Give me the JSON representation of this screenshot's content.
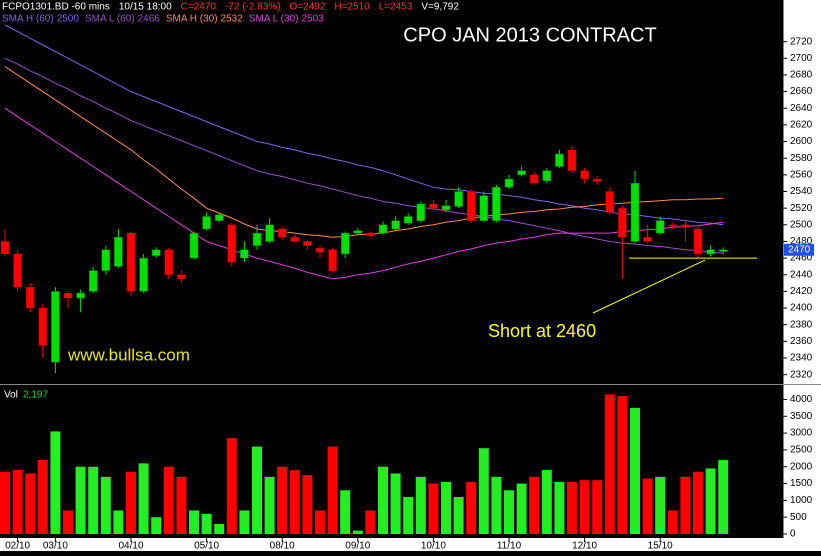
{
  "chart_data": [
    {
      "type": "candlestick",
      "title": "CPO JAN 2013 CONTRACT",
      "header": [
        "FCPO1301.BD -60 mins",
        "10/15 18:00",
        "C=2470",
        "-72 (-2.83%)",
        "O=2492",
        "H=2510",
        "L=2453",
        "V=9,792"
      ],
      "watermark": "www.bullsa.com",
      "annotation": "Short at 2460",
      "short_level": 2460,
      "price_tag": 2470,
      "up_color": "#00e000",
      "down_color": "#ff0000",
      "categories": [
        null,
        "02/10",
        null,
        null,
        "03/10",
        null,
        null,
        null,
        null,
        null,
        "04/10",
        null,
        null,
        null,
        null,
        null,
        "05/10",
        null,
        null,
        null,
        null,
        null,
        "08/10",
        null,
        null,
        null,
        null,
        null,
        "09/10",
        null,
        null,
        null,
        null,
        null,
        "10/10",
        null,
        null,
        null,
        null,
        null,
        "11/10",
        null,
        null,
        null,
        null,
        null,
        "12/10",
        null,
        null,
        null,
        null,
        null,
        "15/10",
        null,
        null,
        null,
        null,
        null
      ],
      "open": [
        2480,
        2465,
        2425,
        2400,
        2335,
        2418,
        2412,
        2420,
        2445,
        2450,
        2490,
        2420,
        2463,
        2470,
        2440,
        2460,
        2495,
        2505,
        2500,
        2460,
        2475,
        2480,
        2495,
        2485,
        2480,
        2472,
        2470,
        2465,
        2490,
        2490,
        2490,
        2495,
        2502,
        2505,
        2525,
        2518,
        2522,
        2540,
        2505,
        2505,
        2545,
        2560,
        2560,
        2553,
        2570,
        2590,
        2565,
        2555,
        2540,
        2520,
        2480,
        2485,
        2490,
        2500,
        2500,
        2495,
        2465,
        2468
      ],
      "high": [
        2495,
        2470,
        2430,
        2405,
        2425,
        2420,
        2422,
        2450,
        2475,
        2495,
        2492,
        2465,
        2473,
        2472,
        2445,
        2492,
        2515,
        2514,
        2502,
        2480,
        2500,
        2508,
        2498,
        2488,
        2482,
        2475,
        2472,
        2492,
        2496,
        2492,
        2504,
        2510,
        2514,
        2528,
        2530,
        2530,
        2545,
        2542,
        2540,
        2548,
        2560,
        2570,
        2563,
        2568,
        2590,
        2595,
        2568,
        2558,
        2545,
        2523,
        2565,
        2500,
        2510,
        2503,
        2505,
        2500,
        2475,
        2473
      ],
      "low": [
        2462,
        2420,
        2395,
        2340,
        2322,
        2400,
        2395,
        2418,
        2440,
        2448,
        2415,
        2418,
        2460,
        2435,
        2430,
        2458,
        2493,
        2503,
        2450,
        2455,
        2470,
        2478,
        2482,
        2478,
        2470,
        2460,
        2443,
        2460,
        2488,
        2485,
        2488,
        2493,
        2500,
        2503,
        2518,
        2515,
        2520,
        2502,
        2503,
        2503,
        2543,
        2558,
        2548,
        2550,
        2568,
        2562,
        2550,
        2548,
        2512,
        2435,
        2478,
        2478,
        2488,
        2495,
        2480,
        2460,
        2462,
        2465
      ],
      "close": [
        2465,
        2425,
        2400,
        2355,
        2420,
        2412,
        2418,
        2445,
        2470,
        2485,
        2420,
        2460,
        2470,
        2440,
        2435,
        2490,
        2510,
        2512,
        2455,
        2470,
        2490,
        2500,
        2485,
        2480,
        2475,
        2467,
        2445,
        2490,
        2493,
        2487,
        2500,
        2505,
        2510,
        2525,
        2520,
        2523,
        2540,
        2505,
        2535,
        2545,
        2555,
        2565,
        2550,
        2565,
        2585,
        2565,
        2555,
        2552,
        2515,
        2485,
        2550,
        2480,
        2505,
        2498,
        2497,
        2465,
        2470,
        2470
      ],
      "series": [
        {
          "name": "SMA H (60)",
          "last": 2500,
          "color": "#7a66e8",
          "values": [
            2740,
            2732,
            2724,
            2716,
            2708,
            2700,
            2692,
            2684,
            2676,
            2668,
            2660,
            2654,
            2648,
            2642,
            2636,
            2630,
            2624,
            2618,
            2612,
            2606,
            2600,
            2597,
            2593,
            2590,
            2586,
            2583,
            2579,
            2576,
            2572,
            2569,
            2565,
            2560,
            2555,
            2550,
            2545,
            2543,
            2542,
            2540,
            2538,
            2537,
            2535,
            2533,
            2530,
            2528,
            2525,
            2523,
            2520,
            2518,
            2515,
            2513,
            2512,
            2510,
            2508,
            2507,
            2505,
            2503,
            2502,
            2500
          ]
        },
        {
          "name": "SMA L (60)",
          "last": 2466,
          "color": "#9a50c8",
          "values": [
            2700,
            2693,
            2685,
            2678,
            2670,
            2663,
            2655,
            2648,
            2640,
            2633,
            2625,
            2619,
            2613,
            2607,
            2601,
            2595,
            2589,
            2583,
            2577,
            2571,
            2565,
            2561,
            2558,
            2554,
            2550,
            2547,
            2543,
            2539,
            2535,
            2532,
            2528,
            2526,
            2523,
            2521,
            2519,
            2517,
            2514,
            2512,
            2510,
            2507,
            2505,
            2502,
            2499,
            2496,
            2493,
            2489,
            2486,
            2483,
            2480,
            2478,
            2477,
            2475,
            2474,
            2472,
            2470,
            2469,
            2467,
            2466
          ]
        },
        {
          "name": "SMA H (30)",
          "last": 2532,
          "color": "#ff8a50",
          "values": [
            2690,
            2680,
            2670,
            2660,
            2650,
            2640,
            2630,
            2620,
            2610,
            2600,
            2590,
            2578,
            2567,
            2555,
            2543,
            2532,
            2520,
            2514,
            2508,
            2501,
            2495,
            2493,
            2492,
            2490,
            2488,
            2487,
            2485,
            2486,
            2488,
            2489,
            2490,
            2493,
            2495,
            2498,
            2500,
            2503,
            2505,
            2508,
            2510,
            2512,
            2513,
            2515,
            2516,
            2518,
            2519,
            2521,
            2522,
            2524,
            2525,
            2526,
            2527,
            2528,
            2529,
            2530,
            2530,
            2531,
            2531,
            2532
          ]
        },
        {
          "name": "SMA L (30)",
          "last": 2503,
          "color": "#e040e0",
          "values": [
            2640,
            2630,
            2620,
            2610,
            2600,
            2590,
            2580,
            2570,
            2560,
            2550,
            2540,
            2530,
            2520,
            2510,
            2500,
            2490,
            2480,
            2475,
            2470,
            2465,
            2460,
            2456,
            2452,
            2448,
            2443,
            2439,
            2435,
            2437,
            2440,
            2442,
            2445,
            2449,
            2453,
            2456,
            2460,
            2464,
            2468,
            2471,
            2475,
            2478,
            2480,
            2483,
            2485,
            2488,
            2490,
            2490,
            2490,
            2490,
            2490,
            2492,
            2493,
            2494,
            2495,
            2497,
            2498,
            2499,
            2501,
            2503
          ]
        }
      ],
      "ylim": [
        2310,
        2770
      ],
      "yticks": [
        2320,
        2340,
        2360,
        2380,
        2400,
        2420,
        2440,
        2460,
        2480,
        2500,
        2520,
        2540,
        2560,
        2580,
        2600,
        2620,
        2640,
        2660,
        2680,
        2700,
        2720
      ]
    },
    {
      "type": "bar",
      "label": "Vol",
      "last": {
        "value": 2197,
        "label": "2,197"
      },
      "values": [
        1850,
        1900,
        1800,
        2200,
        3050,
        700,
        2000,
        2000,
        1700,
        700,
        1850,
        2100,
        500,
        2000,
        1700,
        700,
        600,
        300,
        2850,
        700,
        2600,
        1700,
        2000,
        1900,
        1750,
        700,
        2600,
        1300,
        100,
        700,
        2000,
        1800,
        1100,
        1700,
        1500,
        1550,
        1100,
        1550,
        2550,
        1700,
        1300,
        1500,
        1700,
        1900,
        1550,
        1550,
        1600,
        1600,
        4150,
        4100,
        3750,
        1650,
        1700,
        700,
        1700,
        1850,
        1950,
        2197
      ],
      "ylim": [
        0,
        4400
      ],
      "yticks": [
        0,
        500,
        1000,
        1500,
        2000,
        2500,
        3000,
        3500,
        4000
      ]
    }
  ]
}
